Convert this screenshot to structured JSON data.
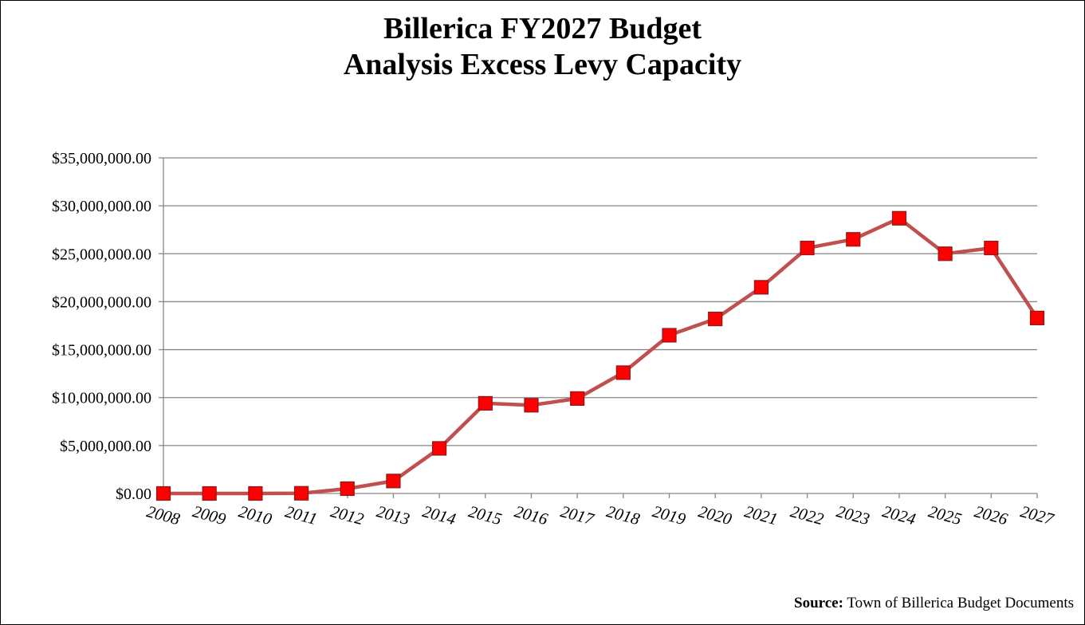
{
  "chart_data": {
    "type": "line",
    "title_line1": "Billerica FY2027 Budget",
    "title_line2": "Analysis Excess Levy Capacity",
    "categories": [
      "2008",
      "2009",
      "2010",
      "2011",
      "2012",
      "2013",
      "2014",
      "2015",
      "2016",
      "2017",
      "2018",
      "2019",
      "2020",
      "2021",
      "2022",
      "2023",
      "2024",
      "2025",
      "2026",
      "2027"
    ],
    "series": [
      {
        "values": [
          0,
          0,
          0,
          20000,
          500000,
          1300000,
          4700000,
          9400000,
          9200000,
          9900000,
          12600000,
          16500000,
          18200000,
          21500000,
          25600000,
          26500000,
          28700000,
          25000000,
          25600000,
          18300000
        ],
        "color": "#c0504d",
        "marker_color": "#ff0000"
      }
    ],
    "ylim": [
      0,
      35000000
    ],
    "yticks": [
      "$0.00",
      "$5,000,000.00",
      "$10,000,000.00",
      "$15,000,000.00",
      "$20,000,000.00",
      "$25,000,000.00",
      "$30,000,000.00",
      "$35,000,000.00"
    ],
    "grid": true,
    "legend": "none"
  },
  "source": {
    "label": "Source:",
    "text": " Town of Billerica Budget Documents"
  }
}
